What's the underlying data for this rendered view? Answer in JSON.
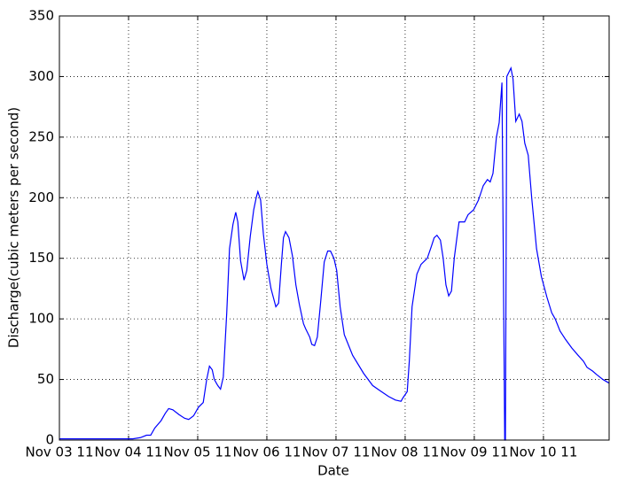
{
  "chart_data": {
    "type": "line",
    "xlabel": "Date",
    "ylabel": "Discharge(cubic meters per second)",
    "x": [
      0,
      1.06,
      1.17,
      1.26,
      1.32,
      1.38,
      1.47,
      1.53,
      1.58,
      1.64,
      1.73,
      1.81,
      1.87,
      1.94,
      2.01,
      2.08,
      2.13,
      2.17,
      2.21,
      2.24,
      2.29,
      2.33,
      2.37,
      2.42,
      2.46,
      2.51,
      2.55,
      2.58,
      2.62,
      2.67,
      2.71,
      2.76,
      2.81,
      2.85,
      2.87,
      2.91,
      2.95,
      3.0,
      3.06,
      3.13,
      3.17,
      3.21,
      3.24,
      3.27,
      3.32,
      3.37,
      3.42,
      3.47,
      3.53,
      3.56,
      3.62,
      3.65,
      3.69,
      3.73,
      3.78,
      3.83,
      3.88,
      3.92,
      3.97,
      4.01,
      4.06,
      4.12,
      4.24,
      4.4,
      4.53,
      4.63,
      4.76,
      4.86,
      4.94,
      4.97,
      5.03,
      5.06,
      5.1,
      5.17,
      5.23,
      5.32,
      5.38,
      5.42,
      5.46,
      5.51,
      5.55,
      5.59,
      5.63,
      5.67,
      5.71,
      5.76,
      5.78,
      5.86,
      5.91,
      5.99,
      6.06,
      6.13,
      6.19,
      6.23,
      6.27,
      6.32,
      6.36,
      6.4,
      6.44,
      6.45,
      6.47,
      6.53,
      6.56,
      6.6,
      6.65,
      6.69,
      6.73,
      6.78,
      6.83,
      6.9,
      6.97,
      7.05,
      7.12,
      7.17,
      7.24,
      7.32,
      7.41,
      7.5,
      7.58,
      7.63,
      7.71,
      7.77,
      7.86,
      7.95
    ],
    "series": [
      {
        "name": "Discharge",
        "color": "#0000ff",
        "values": [
          1,
          1,
          2,
          4,
          4,
          10,
          16,
          22,
          26,
          25,
          21,
          18,
          17,
          20,
          27,
          31,
          50,
          61,
          58,
          50,
          45,
          42,
          52,
          105,
          158,
          178,
          188,
          180,
          148,
          132,
          140,
          168,
          190,
          201,
          205,
          198,
          170,
          145,
          125,
          110,
          113,
          145,
          167,
          172,
          167,
          152,
          128,
          112,
          96,
          92,
          85,
          79,
          78,
          85,
          115,
          147,
          156,
          156,
          150,
          140,
          110,
          87,
          70,
          55,
          45,
          41,
          36,
          33,
          32,
          35,
          40,
          65,
          110,
          137,
          145,
          150,
          160,
          167,
          169,
          165,
          150,
          128,
          119,
          123,
          150,
          172,
          180,
          180,
          186,
          190,
          198,
          210,
          215,
          213,
          220,
          250,
          262,
          295,
          0,
          0,
          300,
          307,
          298,
          263,
          269,
          263,
          245,
          235,
          200,
          158,
          135,
          118,
          105,
          100,
          90,
          83,
          76,
          70,
          65,
          60,
          57,
          54,
          50,
          47
        ]
      }
    ],
    "xlim": [
      0,
      7.95
    ],
    "xticks": [
      {
        "value": 0,
        "label": "Nov 03 11"
      },
      {
        "value": 1,
        "label": "Nov 04 11"
      },
      {
        "value": 2,
        "label": "Nov 05 11"
      },
      {
        "value": 3,
        "label": "Nov 06 11"
      },
      {
        "value": 4,
        "label": "Nov 07 11"
      },
      {
        "value": 5,
        "label": "Nov 08 11"
      },
      {
        "value": 6,
        "label": "Nov 09 11"
      },
      {
        "value": 7,
        "label": "Nov 10 11"
      }
    ],
    "ylim": [
      0,
      350
    ],
    "yticks": [
      0,
      50,
      100,
      150,
      200,
      250,
      300,
      350
    ],
    "grid": true
  }
}
